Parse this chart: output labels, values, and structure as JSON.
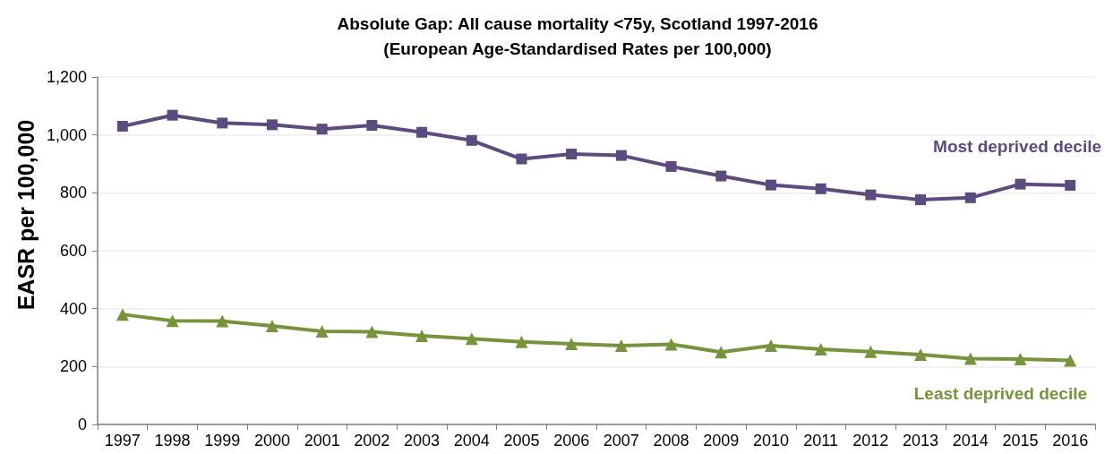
{
  "chart_data": {
    "type": "line",
    "title": "Absolute Gap: All cause mortality <75y, Scotland 1997-2016",
    "subtitle": "(European Age-Standardised Rates per 100,000)",
    "ylabel": "EASR per 100,000",
    "categories": [
      "1997",
      "1998",
      "1999",
      "2000",
      "2001",
      "2002",
      "2003",
      "2004",
      "2005",
      "2006",
      "2007",
      "2008",
      "2009",
      "2010",
      "2011",
      "2012",
      "2013",
      "2014",
      "2015",
      "2016"
    ],
    "series": [
      {
        "name": "Most deprived decile",
        "color": "#5d4a7e",
        "marker": "square",
        "values": [
          1030,
          1068,
          1041,
          1035,
          1020,
          1033,
          1009,
          981,
          917,
          934,
          929,
          891,
          858,
          827,
          814,
          793,
          776,
          783,
          830,
          826
        ]
      },
      {
        "name": "Least deprived decile",
        "color": "#77933c",
        "marker": "triangle",
        "values": [
          380,
          358,
          357,
          340,
          322,
          320,
          306,
          296,
          285,
          278,
          272,
          277,
          250,
          272,
          260,
          251,
          241,
          227,
          226,
          221
        ]
      }
    ],
    "ylim": [
      0,
      1200
    ],
    "yticks": [
      0,
      200,
      400,
      600,
      800,
      {
        "value": 1000,
        "label": "1,000"
      },
      {
        "value": 1200,
        "label": "1,200"
      }
    ],
    "grid": "y",
    "legend": false,
    "line_style": "solid"
  }
}
